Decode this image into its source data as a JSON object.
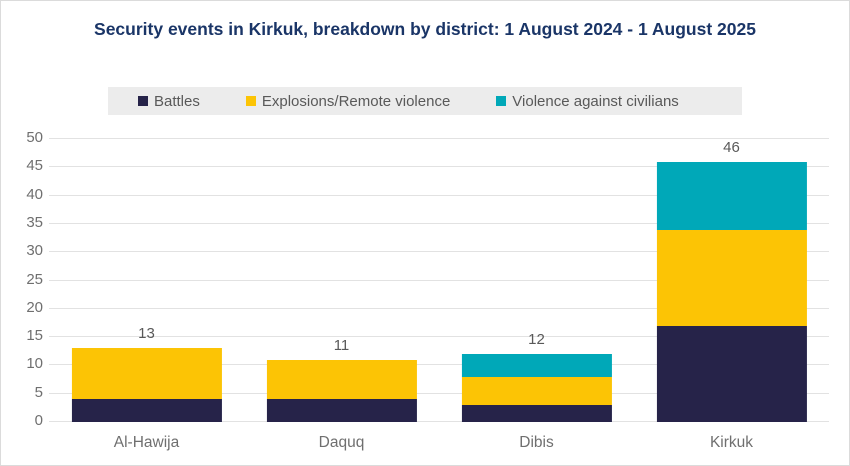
{
  "colors": {
    "title_text": "#1a3567",
    "axis_text": "#6f6f6f",
    "value_label_text": "#595959",
    "legend_background": "#ececec",
    "gridline": "#e2e2e2",
    "frame_border": "#dbdbdb"
  },
  "chart_data": {
    "type": "bar",
    "stacked": true,
    "title": "Security events in Kirkuk, breakdown by district: 1 August 2024 - 1 August 2025",
    "xlabel": "",
    "ylabel": "",
    "categories": [
      "Al-Hawija",
      "Daquq",
      "Dibis",
      "Kirkuk"
    ],
    "series": [
      {
        "name": "Battles",
        "color": "#262349",
        "values": [
          4,
          4,
          3,
          17
        ]
      },
      {
        "name": "Explosions/Remote violence",
        "color": "#fcc405",
        "values": [
          9,
          7,
          5,
          17
        ]
      },
      {
        "name": "Violence against civilians",
        "color": "#00a8b8",
        "values": [
          0,
          0,
          4,
          12
        ]
      }
    ],
    "totals": [
      13,
      11,
      12,
      46
    ],
    "ylim": [
      0,
      50
    ],
    "ytick_step": 5,
    "yticks": [
      0,
      5,
      10,
      15,
      20,
      25,
      30,
      35,
      40,
      45,
      50
    ],
    "grid": true,
    "legend_position": "top"
  }
}
